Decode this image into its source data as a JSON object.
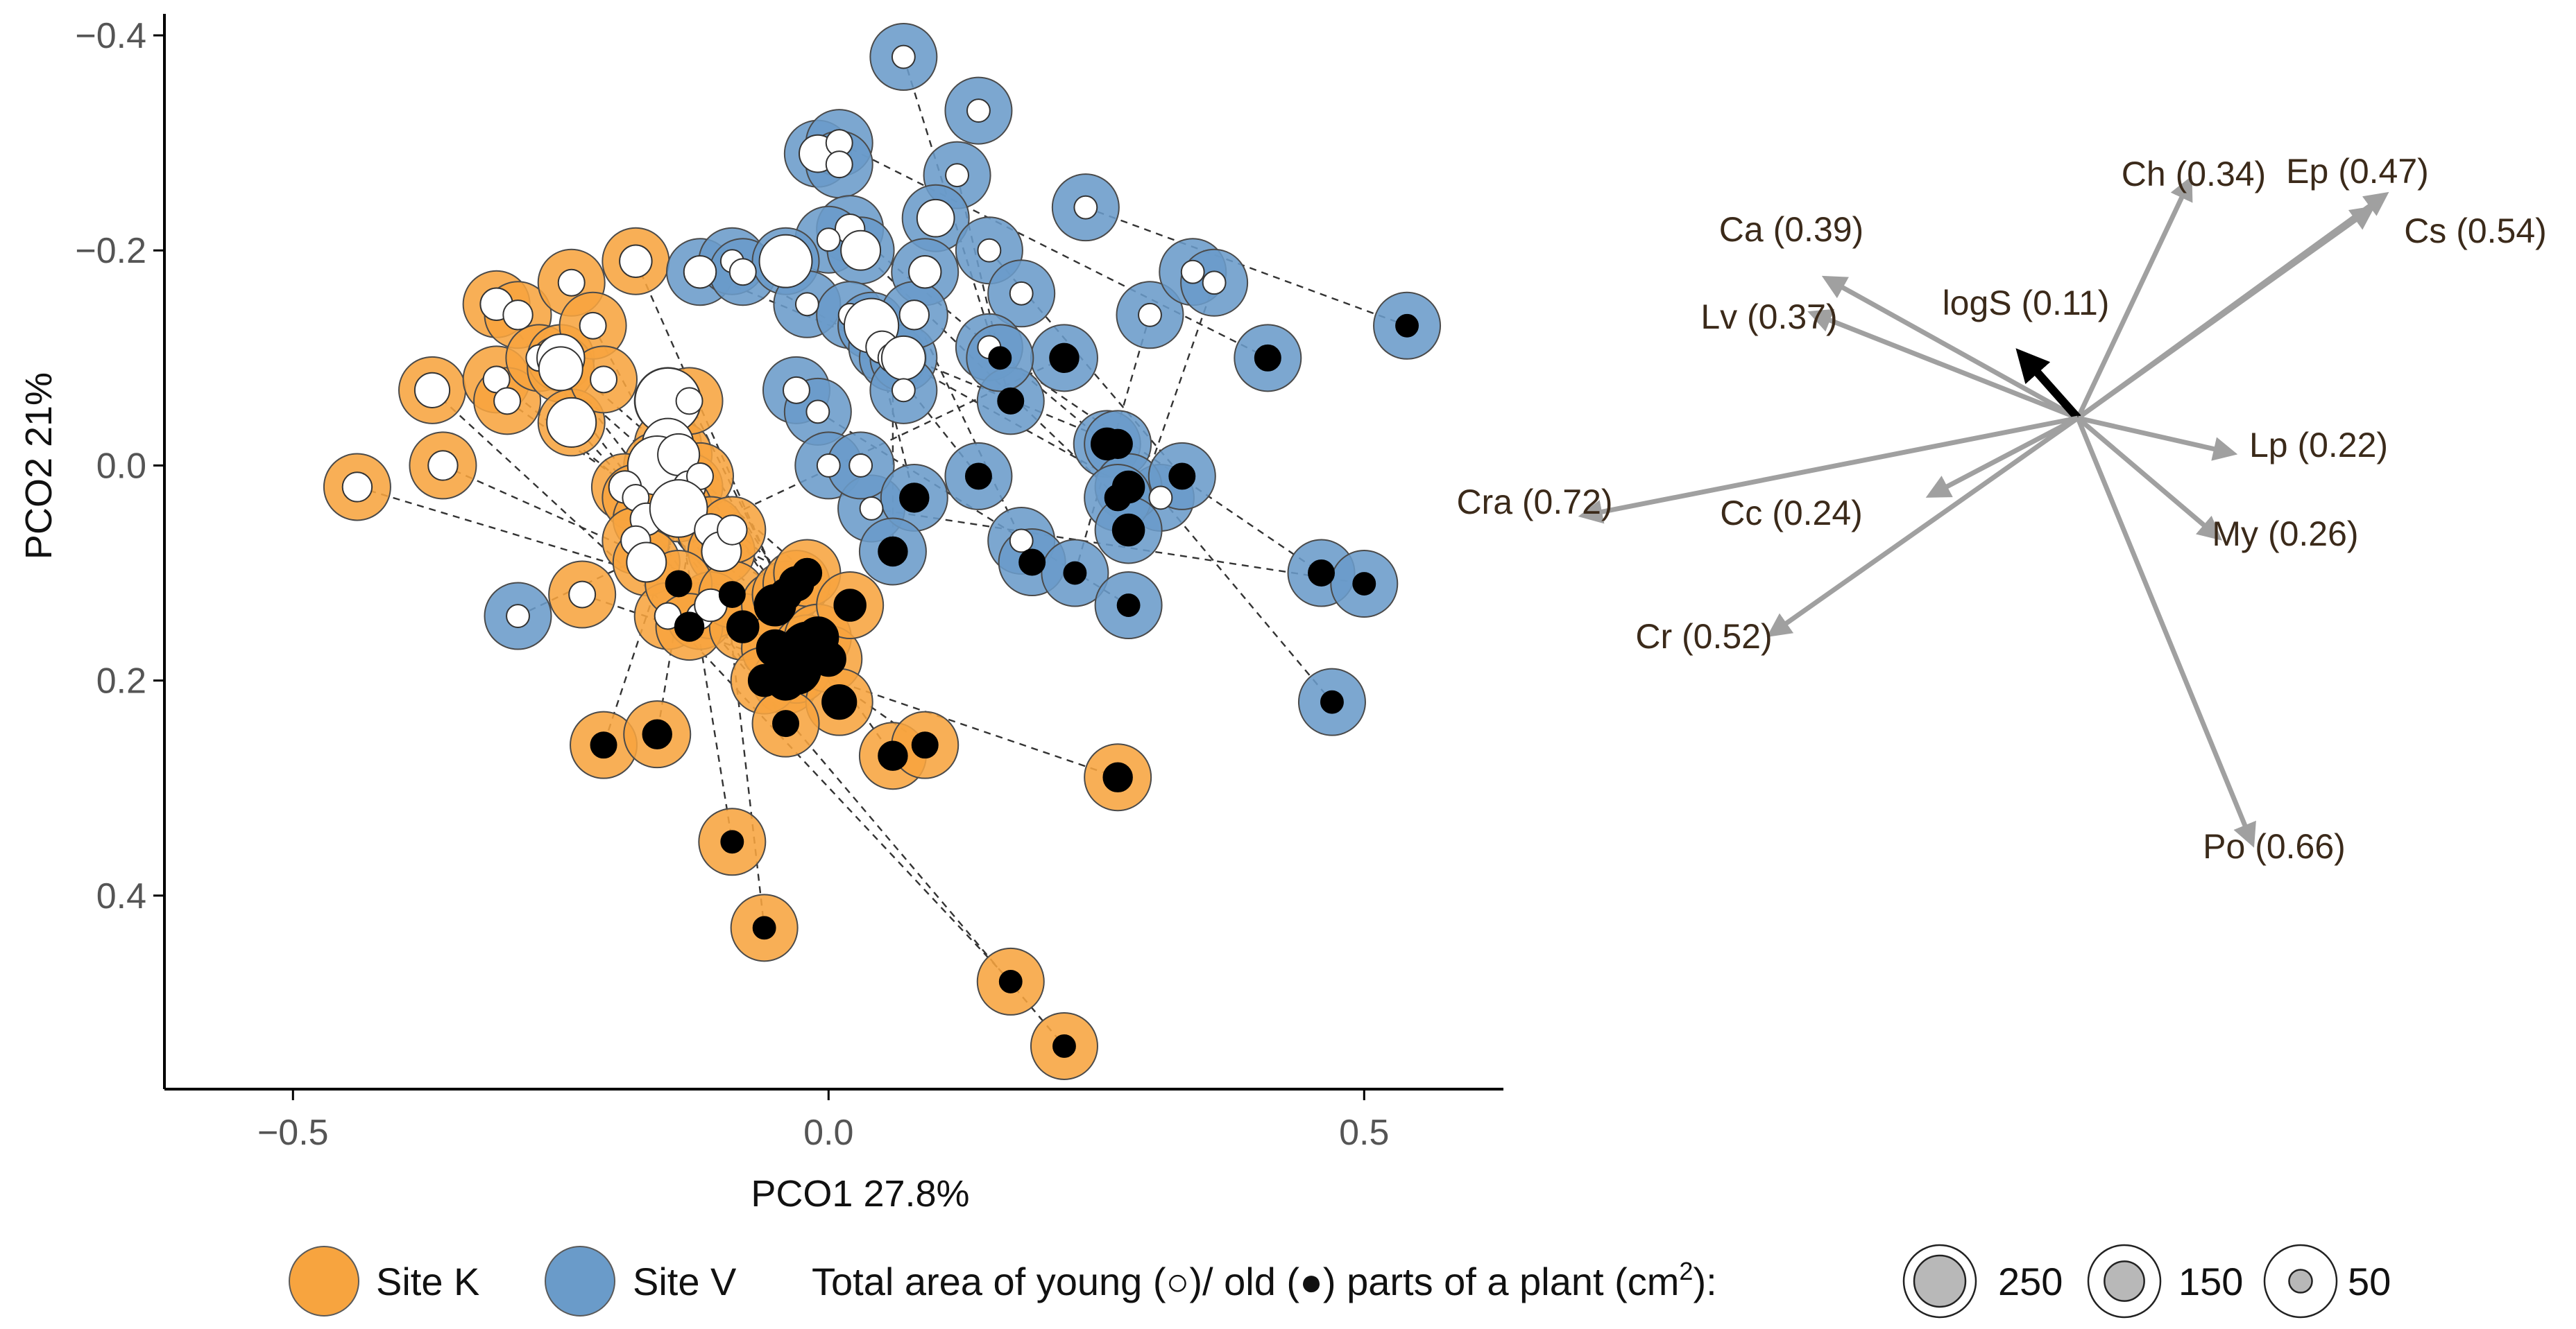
{
  "chart_data": [
    {
      "type": "scatter",
      "title": "",
      "xlabel": "PCO1  27.8%",
      "ylabel": "PCO2  21%",
      "xlim": [
        -0.62,
        0.63
      ],
      "ylim": [
        0.58,
        -0.42
      ],
      "y_reversed": true,
      "x_ticks": [
        -0.5,
        0.0,
        0.5
      ],
      "y_ticks": [
        -0.4,
        -0.2,
        0.0,
        0.2,
        0.4
      ],
      "x_tick_labels": [
        "−0.5",
        "0.0",
        "0.5"
      ],
      "y_tick_labels": [
        "−0.4",
        "−0.2",
        "0.0",
        "0.2",
        "0.4"
      ],
      "grid": false,
      "series": [
        {
          "name": "Site K",
          "color": "#F7A43F",
          "points": [
            {
              "x": -0.44,
              "y": 0.02,
              "young": 50,
              "old": 0
            },
            {
              "x": -0.37,
              "y": -0.07,
              "young": 70,
              "old": 0
            },
            {
              "x": -0.36,
              "y": 0.0,
              "young": 50,
              "old": 0
            },
            {
              "x": -0.31,
              "y": -0.15,
              "young": 60,
              "old": 0
            },
            {
              "x": -0.29,
              "y": -0.14,
              "young": 50,
              "old": 0
            },
            {
              "x": -0.31,
              "y": -0.08,
              "young": 40,
              "old": 0
            },
            {
              "x": -0.3,
              "y": -0.06,
              "young": 40,
              "old": 0
            },
            {
              "x": -0.27,
              "y": -0.1,
              "young": 40,
              "old": 0
            },
            {
              "x": -0.24,
              "y": -0.17,
              "young": 40,
              "old": 0
            },
            {
              "x": -0.25,
              "y": -0.1,
              "young": 130,
              "old": 0
            },
            {
              "x": -0.25,
              "y": -0.09,
              "young": 110,
              "old": 0
            },
            {
              "x": -0.22,
              "y": -0.13,
              "young": 40,
              "old": 0
            },
            {
              "x": -0.24,
              "y": -0.04,
              "young": 140,
              "old": 0
            },
            {
              "x": -0.21,
              "y": -0.08,
              "young": 40,
              "old": 0
            },
            {
              "x": -0.18,
              "y": -0.19,
              "young": 60,
              "old": 0
            },
            {
              "x": -0.15,
              "y": -0.06,
              "young": 250,
              "old": 0
            },
            {
              "x": -0.15,
              "y": -0.02,
              "young": 150,
              "old": 0
            },
            {
              "x": -0.16,
              "y": 0.0,
              "young": 200,
              "old": 0
            },
            {
              "x": -0.14,
              "y": -0.01,
              "young": 100,
              "old": 0
            },
            {
              "x": -0.13,
              "y": -0.06,
              "young": 40,
              "old": 0
            },
            {
              "x": -0.19,
              "y": 0.02,
              "young": 60,
              "old": 0
            },
            {
              "x": -0.18,
              "y": 0.03,
              "young": 40,
              "old": 0
            },
            {
              "x": -0.17,
              "y": 0.05,
              "young": 60,
              "old": 0
            },
            {
              "x": -0.13,
              "y": 0.02,
              "young": 60,
              "old": 0
            },
            {
              "x": -0.12,
              "y": 0.01,
              "young": 40,
              "old": 0
            },
            {
              "x": -0.14,
              "y": 0.04,
              "young": 190,
              "old": 0
            },
            {
              "x": -0.11,
              "y": 0.06,
              "young": 60,
              "old": 0
            },
            {
              "x": -0.1,
              "y": 0.08,
              "young": 90,
              "old": 0
            },
            {
              "x": -0.09,
              "y": 0.06,
              "young": 50,
              "old": 0
            },
            {
              "x": -0.18,
              "y": 0.07,
              "young": 50,
              "old": 0
            },
            {
              "x": -0.17,
              "y": 0.09,
              "young": 90,
              "old": 0
            },
            {
              "x": -0.23,
              "y": 0.12,
              "young": 40,
              "old": 0
            },
            {
              "x": -0.15,
              "y": 0.14,
              "young": 40,
              "old": 0
            },
            {
              "x": -0.12,
              "y": 0.14,
              "young": 40,
              "old": 0
            },
            {
              "x": -0.11,
              "y": 0.13,
              "young": 60,
              "old": 0
            },
            {
              "x": -0.14,
              "y": 0.11,
              "young": 0,
              "old": 40
            },
            {
              "x": -0.13,
              "y": 0.15,
              "young": 0,
              "old": 50
            },
            {
              "x": -0.09,
              "y": 0.12,
              "young": 0,
              "old": 40
            },
            {
              "x": -0.08,
              "y": 0.15,
              "young": 0,
              "old": 60
            },
            {
              "x": -0.05,
              "y": 0.13,
              "young": 0,
              "old": 100
            },
            {
              "x": -0.04,
              "y": 0.12,
              "young": 0,
              "old": 60
            },
            {
              "x": -0.03,
              "y": 0.11,
              "young": 0,
              "old": 70
            },
            {
              "x": -0.02,
              "y": 0.1,
              "young": 0,
              "old": 50
            },
            {
              "x": -0.05,
              "y": 0.17,
              "young": 0,
              "old": 80
            },
            {
              "x": -0.04,
              "y": 0.2,
              "young": 0,
              "old": 90
            },
            {
              "x": -0.03,
              "y": 0.19,
              "young": 0,
              "old": 140
            },
            {
              "x": -0.02,
              "y": 0.17,
              "young": 0,
              "old": 160
            },
            {
              "x": -0.01,
              "y": 0.16,
              "young": 0,
              "old": 100
            },
            {
              "x": -0.06,
              "y": 0.2,
              "young": 0,
              "old": 60
            },
            {
              "x": 0.0,
              "y": 0.18,
              "young": 0,
              "old": 70
            },
            {
              "x": 0.01,
              "y": 0.22,
              "young": 0,
              "old": 70
            },
            {
              "x": 0.02,
              "y": 0.13,
              "young": 0,
              "old": 60
            },
            {
              "x": -0.04,
              "y": 0.24,
              "young": 0,
              "old": 40
            },
            {
              "x": -0.21,
              "y": 0.26,
              "young": 0,
              "old": 40
            },
            {
              "x": -0.16,
              "y": 0.25,
              "young": 0,
              "old": 50
            },
            {
              "x": -0.09,
              "y": 0.35,
              "young": 0,
              "old": 30
            },
            {
              "x": -0.06,
              "y": 0.43,
              "young": 0,
              "old": 30
            },
            {
              "x": 0.06,
              "y": 0.27,
              "young": 0,
              "old": 50
            },
            {
              "x": 0.09,
              "y": 0.26,
              "young": 0,
              "old": 40
            },
            {
              "x": 0.27,
              "y": 0.29,
              "young": 0,
              "old": 50
            },
            {
              "x": 0.17,
              "y": 0.48,
              "young": 0,
              "old": 30
            },
            {
              "x": 0.22,
              "y": 0.54,
              "young": 0,
              "old": 30
            }
          ]
        },
        {
          "name": "Site V",
          "color": "#6A9BC9",
          "points": [
            {
              "x": -0.29,
              "y": 0.14,
              "young": 30,
              "old": 0
            },
            {
              "x": 0.07,
              "y": -0.38,
              "young": 30,
              "old": 0
            },
            {
              "x": 0.14,
              "y": -0.33,
              "young": 30,
              "old": 0
            },
            {
              "x": 0.12,
              "y": -0.27,
              "young": 30,
              "old": 0
            },
            {
              "x": -0.01,
              "y": -0.29,
              "young": 80,
              "old": 0
            },
            {
              "x": 0.01,
              "y": -0.3,
              "young": 40,
              "old": 0
            },
            {
              "x": 0.01,
              "y": -0.28,
              "young": 40,
              "old": 0
            },
            {
              "x": 0.24,
              "y": -0.24,
              "young": 30,
              "old": 0
            },
            {
              "x": 0.1,
              "y": -0.23,
              "young": 80,
              "old": 0
            },
            {
              "x": 0.02,
              "y": -0.22,
              "young": 50,
              "old": 0
            },
            {
              "x": 0.0,
              "y": -0.21,
              "young": 30,
              "old": 0
            },
            {
              "x": -0.12,
              "y": -0.18,
              "young": 60,
              "old": 0
            },
            {
              "x": -0.09,
              "y": -0.19,
              "young": 30,
              "old": 0
            },
            {
              "x": -0.08,
              "y": -0.18,
              "young": 40,
              "old": 0
            },
            {
              "x": -0.04,
              "y": -0.19,
              "young": 160,
              "old": 0
            },
            {
              "x": 0.03,
              "y": -0.2,
              "young": 90,
              "old": 0
            },
            {
              "x": 0.09,
              "y": -0.18,
              "young": 60,
              "old": 0
            },
            {
              "x": 0.15,
              "y": -0.2,
              "young": 30,
              "old": 0
            },
            {
              "x": -0.02,
              "y": -0.15,
              "young": 30,
              "old": 0
            },
            {
              "x": 0.02,
              "y": -0.14,
              "young": 30,
              "old": 0
            },
            {
              "x": 0.04,
              "y": -0.13,
              "young": 170,
              "old": 0
            },
            {
              "x": 0.05,
              "y": -0.11,
              "young": 60,
              "old": 0
            },
            {
              "x": 0.06,
              "y": -0.1,
              "young": 50,
              "old": 0
            },
            {
              "x": 0.07,
              "y": -0.1,
              "young": 110,
              "old": 0
            },
            {
              "x": 0.08,
              "y": -0.14,
              "young": 50,
              "old": 0
            },
            {
              "x": 0.18,
              "y": -0.16,
              "young": 30,
              "old": 0
            },
            {
              "x": 0.3,
              "y": -0.14,
              "young": 30,
              "old": 0
            },
            {
              "x": 0.34,
              "y": -0.18,
              "young": 30,
              "old": 0
            },
            {
              "x": 0.36,
              "y": -0.17,
              "young": 30,
              "old": 0
            },
            {
              "x": -0.03,
              "y": -0.07,
              "young": 40,
              "old": 0
            },
            {
              "x": -0.01,
              "y": -0.05,
              "young": 30,
              "old": 0
            },
            {
              "x": 0.07,
              "y": -0.07,
              "young": 30,
              "old": 0
            },
            {
              "x": 0.15,
              "y": -0.11,
              "young": 30,
              "old": 0
            },
            {
              "x": 0.0,
              "y": 0.0,
              "young": 30,
              "old": 0
            },
            {
              "x": 0.04,
              "y": 0.04,
              "young": 30,
              "old": 0
            },
            {
              "x": 0.18,
              "y": 0.07,
              "young": 30,
              "old": 0
            },
            {
              "x": 0.31,
              "y": 0.03,
              "young": 30,
              "old": 0
            },
            {
              "x": 0.03,
              "y": 0.0,
              "young": 30,
              "old": 0
            },
            {
              "x": 0.22,
              "y": -0.1,
              "young": 0,
              "old": 50
            },
            {
              "x": 0.17,
              "y": -0.06,
              "young": 0,
              "old": 40
            },
            {
              "x": 0.16,
              "y": -0.1,
              "young": 0,
              "old": 30
            },
            {
              "x": 0.41,
              "y": -0.1,
              "young": 0,
              "old": 40
            },
            {
              "x": 0.54,
              "y": -0.13,
              "young": 0,
              "old": 30
            },
            {
              "x": 0.26,
              "y": -0.02,
              "young": 0,
              "old": 60
            },
            {
              "x": 0.27,
              "y": -0.02,
              "young": 0,
              "old": 50
            },
            {
              "x": 0.28,
              "y": 0.02,
              "young": 0,
              "old": 60
            },
            {
              "x": 0.27,
              "y": 0.03,
              "young": 0,
              "old": 40
            },
            {
              "x": 0.33,
              "y": 0.01,
              "young": 0,
              "old": 40
            },
            {
              "x": 0.14,
              "y": 0.01,
              "young": 0,
              "old": 40
            },
            {
              "x": 0.08,
              "y": 0.03,
              "young": 0,
              "old": 50
            },
            {
              "x": 0.06,
              "y": 0.08,
              "young": 0,
              "old": 50
            },
            {
              "x": 0.19,
              "y": 0.09,
              "young": 0,
              "old": 40
            },
            {
              "x": 0.23,
              "y": 0.1,
              "young": 0,
              "old": 30
            },
            {
              "x": 0.28,
              "y": 0.06,
              "young": 0,
              "old": 60
            },
            {
              "x": 0.28,
              "y": 0.13,
              "young": 0,
              "old": 30
            },
            {
              "x": 0.46,
              "y": 0.1,
              "young": 0,
              "old": 40
            },
            {
              "x": 0.5,
              "y": 0.11,
              "young": 0,
              "old": 30
            },
            {
              "x": 0.47,
              "y": 0.22,
              "young": 0,
              "old": 30
            }
          ]
        }
      ]
    },
    {
      "type": "biplot-vectors",
      "vectors": [
        {
          "label": "Ch (0.34)",
          "dx": 0.16,
          "dy": 0.34
        },
        {
          "label": "Ep (0.47)",
          "dx": 0.44,
          "dy": 0.32
        },
        {
          "label": "Cs (0.54)",
          "dx": 0.42,
          "dy": 0.3
        },
        {
          "label": "Ca (0.39)",
          "dx": -0.36,
          "dy": 0.2
        },
        {
          "label": "Lv (0.37)",
          "dx": -0.38,
          "dy": 0.15
        },
        {
          "label": "logS (0.11)",
          "dx": -0.08,
          "dy": 0.09
        },
        {
          "label": "Lp (0.22)",
          "dx": 0.22,
          "dy": -0.05
        },
        {
          "label": "My (0.26)",
          "dx": 0.2,
          "dy": -0.17
        },
        {
          "label": "Cra (0.72)",
          "dx": -0.71,
          "dy": -0.14
        },
        {
          "label": "Cc (0.24)",
          "dx": -0.21,
          "dy": -0.11
        },
        {
          "label": "Cr (0.52)",
          "dx": -0.44,
          "dy": -0.31
        },
        {
          "label": "Po (0.66)",
          "dx": 0.25,
          "dy": -0.61
        }
      ],
      "highlight": "logS (0.11)"
    }
  ],
  "legend": {
    "site_k": "Site K",
    "site_v": "Site V",
    "area_text": "Total area of young (○)/ old (●) parts of a plant (cm",
    "area_sup": "2",
    "area_tail": "):",
    "size_labels": [
      "250",
      "150",
      "50"
    ],
    "size_values": [
      250,
      150,
      50
    ]
  },
  "colors": {
    "site_k": "#F7A43F",
    "site_v": "#6A9BC9",
    "vector": "#A0A0A0",
    "highlight": "#000000",
    "young": "#FFFFFF",
    "old": "#000000"
  }
}
